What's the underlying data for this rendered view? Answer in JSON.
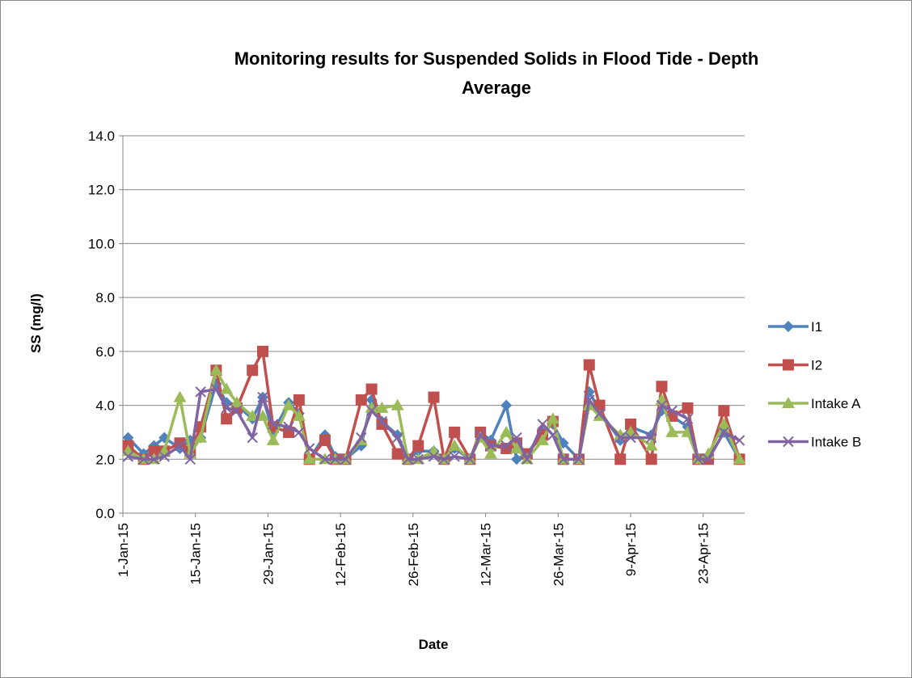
{
  "chart_data": {
    "type": "line",
    "title": "Monitoring results for Suspended Solids in Flood Tide - Depth Average",
    "x_label": "Date",
    "y_label": "SS (mg/l)",
    "x": [
      "2015-01-02",
      "2015-01-05",
      "2015-01-07",
      "2015-01-09",
      "2015-01-12",
      "2015-01-14",
      "2015-01-16",
      "2015-01-19",
      "2015-01-21",
      "2015-01-23",
      "2015-01-26",
      "2015-01-28",
      "2015-01-30",
      "2015-02-02",
      "2015-02-04",
      "2015-02-06",
      "2015-02-09",
      "2015-02-11",
      "2015-02-13",
      "2015-02-16",
      "2015-02-18",
      "2015-02-20",
      "2015-02-23",
      "2015-02-25",
      "2015-02-27",
      "2015-03-02",
      "2015-03-04",
      "2015-03-06",
      "2015-03-09",
      "2015-03-11",
      "2015-03-13",
      "2015-03-16",
      "2015-03-18",
      "2015-03-20",
      "2015-03-23",
      "2015-03-25",
      "2015-03-27",
      "2015-03-30",
      "2015-04-01",
      "2015-04-03",
      "2015-04-07",
      "2015-04-09",
      "2015-04-13",
      "2015-04-15",
      "2015-04-17",
      "2015-04-20",
      "2015-04-22",
      "2015-04-24",
      "2015-04-27",
      "2015-04-30"
    ],
    "series": [
      {
        "name": "I1",
        "color": "#4f81bd",
        "marker": "diamond",
        "values": [
          2.8,
          2.2,
          2.5,
          2.8,
          2.4,
          2.7,
          2.8,
          4.8,
          4.1,
          4.0,
          3.5,
          4.3,
          3.0,
          4.1,
          3.7,
          2.0,
          2.9,
          2.1,
          2.0,
          2.5,
          4.2,
          3.4,
          2.9,
          2.0,
          2.3,
          2.3,
          2.0,
          2.4,
          2.0,
          3.0,
          2.7,
          4.0,
          2.0,
          2.2,
          3.0,
          3.3,
          2.6,
          2.0,
          4.5,
          3.8,
          2.7,
          3.2,
          2.9,
          3.8,
          3.6,
          3.2,
          2.0,
          2.0,
          3.0,
          2.0
        ]
      },
      {
        "name": "I2",
        "color": "#c0504d",
        "marker": "square",
        "values": [
          2.5,
          2.0,
          2.3,
          2.3,
          2.6,
          2.3,
          3.2,
          5.3,
          3.5,
          3.9,
          5.3,
          6.0,
          3.2,
          3.0,
          4.2,
          2.0,
          2.7,
          2.0,
          2.0,
          4.2,
          4.6,
          3.3,
          2.2,
          2.0,
          2.5,
          4.3,
          2.0,
          3.0,
          2.0,
          3.0,
          2.5,
          2.4,
          2.6,
          2.2,
          2.9,
          3.4,
          2.0,
          2.0,
          5.5,
          4.0,
          2.0,
          3.3,
          2.0,
          4.7,
          3.6,
          3.9,
          2.0,
          2.0,
          3.8,
          2.0
        ]
      },
      {
        "name": "Intake A",
        "color": "#9bbb59",
        "marker": "triangle",
        "values": [
          2.3,
          2.0,
          2.0,
          2.3,
          4.3,
          2.2,
          2.8,
          5.3,
          4.6,
          4.1,
          3.6,
          3.6,
          2.7,
          4.0,
          3.6,
          2.0,
          2.0,
          2.0,
          2.0,
          2.7,
          3.9,
          3.9,
          4.0,
          2.0,
          2.0,
          2.3,
          2.0,
          2.5,
          2.0,
          2.8,
          2.2,
          3.0,
          2.4,
          2.0,
          2.7,
          3.5,
          2.0,
          2.0,
          4.0,
          3.6,
          2.9,
          3.0,
          2.5,
          4.2,
          3.0,
          3.0,
          2.0,
          2.2,
          3.3,
          2.0
        ]
      },
      {
        "name": "Intake B",
        "color": "#8064a2",
        "marker": "x",
        "values": [
          2.1,
          2.0,
          2.0,
          2.1,
          2.5,
          2.0,
          4.5,
          4.6,
          3.9,
          3.8,
          2.8,
          4.3,
          3.3,
          3.2,
          3.0,
          2.4,
          2.0,
          2.0,
          2.0,
          2.8,
          3.8,
          3.4,
          2.8,
          2.0,
          2.0,
          2.1,
          2.0,
          2.1,
          2.0,
          2.9,
          2.5,
          2.5,
          2.8,
          2.0,
          3.3,
          2.9,
          2.0,
          2.0,
          4.2,
          3.7,
          2.8,
          2.8,
          2.8,
          4.0,
          3.8,
          3.5,
          2.0,
          2.0,
          3.0,
          2.7
        ]
      }
    ],
    "xlim": [
      "2015-01-01",
      "2015-05-01"
    ],
    "xticks": [
      {
        "value": "2015-01-01",
        "label": "1-Jan-15"
      },
      {
        "value": "2015-01-15",
        "label": "15-Jan-15"
      },
      {
        "value": "2015-01-29",
        "label": "29-Jan-15"
      },
      {
        "value": "2015-02-12",
        "label": "12-Feb-15"
      },
      {
        "value": "2015-02-26",
        "label": "26-Feb-15"
      },
      {
        "value": "2015-03-12",
        "label": "12-Mar-15"
      },
      {
        "value": "2015-03-26",
        "label": "26-Mar-15"
      },
      {
        "value": "2015-04-09",
        "label": "9-Apr-15"
      },
      {
        "value": "2015-04-23",
        "label": "23-Apr-15"
      }
    ],
    "ylim": [
      0,
      14
    ],
    "yticks": [
      {
        "value": 0,
        "label": "0.0"
      },
      {
        "value": 2,
        "label": "2.0"
      },
      {
        "value": 4,
        "label": "4.0"
      },
      {
        "value": 6,
        "label": "6.0"
      },
      {
        "value": 8,
        "label": "8.0"
      },
      {
        "value": 10,
        "label": "10.0"
      },
      {
        "value": 12,
        "label": "12.0"
      },
      {
        "value": 14,
        "label": "14.0"
      }
    ],
    "grid": true,
    "legend": "right"
  }
}
